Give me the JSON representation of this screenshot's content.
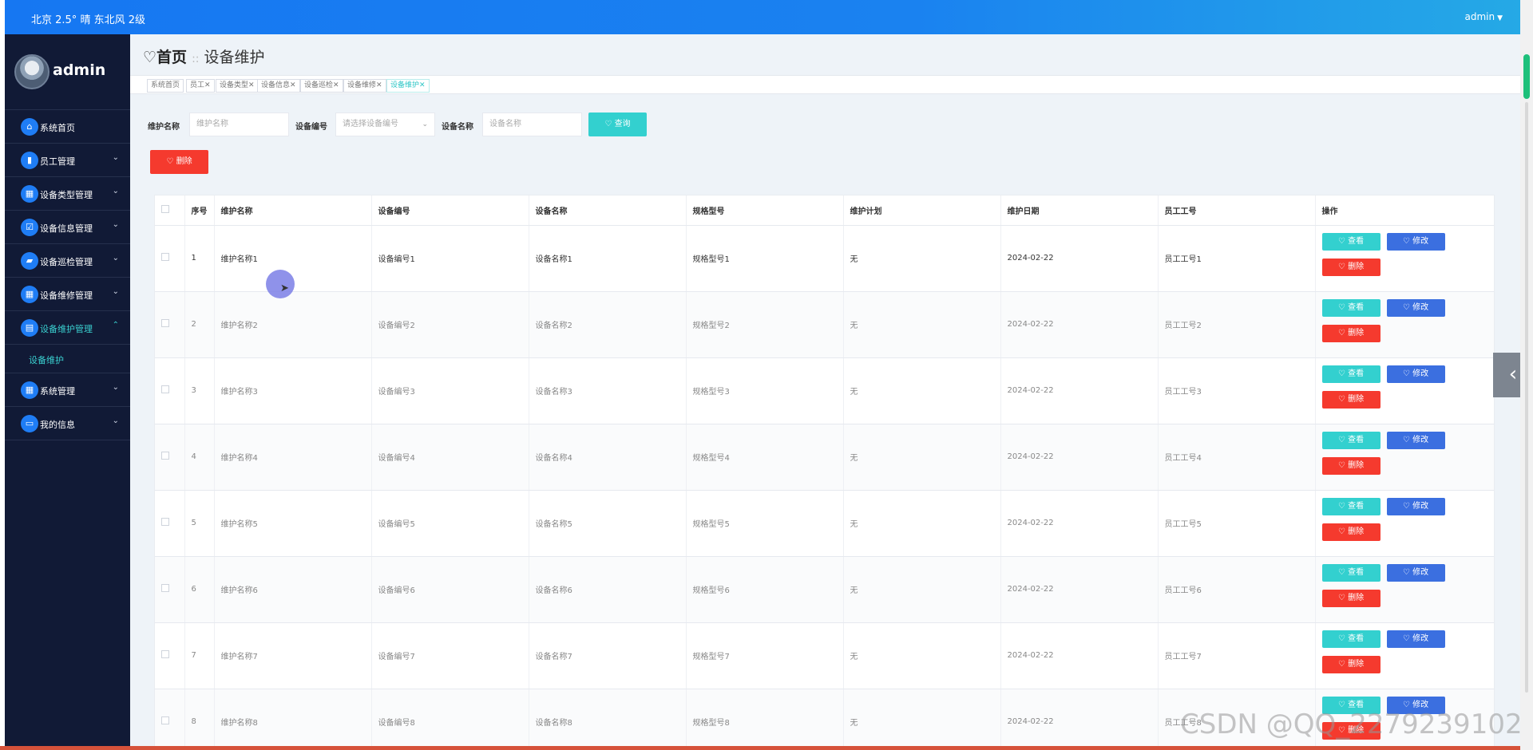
{
  "topbar": {
    "weather": "北京 2.5° 晴 东北风 2级",
    "user": "admin"
  },
  "sidebar": {
    "username": "admin",
    "items": [
      {
        "label": "系统首页",
        "icon": "home-icon",
        "glyph": "⌂",
        "has_children": false
      },
      {
        "label": "员工管理",
        "icon": "bar-chart-icon",
        "glyph": "▮",
        "has_children": true
      },
      {
        "label": "设备类型管理",
        "icon": "grid-icon",
        "glyph": "▦",
        "has_children": true
      },
      {
        "label": "设备信息管理",
        "icon": "check-square-icon",
        "glyph": "☑",
        "has_children": true
      },
      {
        "label": "设备巡检管理",
        "icon": "toolbox-icon",
        "glyph": "▰",
        "has_children": true
      },
      {
        "label": "设备维修管理",
        "icon": "grid-icon",
        "glyph": "▦",
        "has_children": true
      },
      {
        "label": "设备维护管理",
        "icon": "briefcase-icon",
        "glyph": "▤",
        "has_children": true,
        "expanded": true
      },
      {
        "label": "系统管理",
        "icon": "grid-icon",
        "glyph": "▦",
        "has_children": true
      },
      {
        "label": "我的信息",
        "icon": "id-card-icon",
        "glyph": "▭",
        "has_children": true
      }
    ],
    "sub_item": "设备维护",
    "chevron_down": "⌄",
    "chevron_up": "⌃"
  },
  "breadcrumb": {
    "home": "首页",
    "separator": "::",
    "current": "设备维护"
  },
  "tags": [
    "系统首页",
    "员工✕",
    "设备类型✕",
    "设备信息✕",
    "设备巡检✕",
    "设备维修✕",
    "设备维护✕"
  ],
  "filters": {
    "name_label": "维护名称",
    "name_placeholder": "维护名称",
    "code_label": "设备编号",
    "code_placeholder": "请选择设备编号",
    "device_label": "设备名称",
    "device_placeholder": "设备名称",
    "query_label": "♡ 查询"
  },
  "delete_label": "♡ 删除",
  "table": {
    "columns": [
      "",
      "序号",
      "维护名称",
      "设备编号",
      "设备名称",
      "规格型号",
      "维护计划",
      "维护日期",
      "员工工号",
      "操作"
    ],
    "rows": [
      [
        "1",
        "维护名称1",
        "设备编号1",
        "设备名称1",
        "规格型号1",
        "无",
        "2024-02-22",
        "员工工号1"
      ],
      [
        "2",
        "维护名称2",
        "设备编号2",
        "设备名称2",
        "规格型号2",
        "无",
        "2024-02-22",
        "员工工号2"
      ],
      [
        "3",
        "维护名称3",
        "设备编号3",
        "设备名称3",
        "规格型号3",
        "无",
        "2024-02-22",
        "员工工号3"
      ],
      [
        "4",
        "维护名称4",
        "设备编号4",
        "设备名称4",
        "规格型号4",
        "无",
        "2024-02-22",
        "员工工号4"
      ],
      [
        "5",
        "维护名称5",
        "设备编号5",
        "设备名称5",
        "规格型号5",
        "无",
        "2024-02-22",
        "员工工号5"
      ],
      [
        "6",
        "维护名称6",
        "设备编号6",
        "设备名称6",
        "规格型号6",
        "无",
        "2024-02-22",
        "员工工号6"
      ],
      [
        "7",
        "维护名称7",
        "设备编号7",
        "设备名称7",
        "规格型号7",
        "无",
        "2024-02-22",
        "员工工号7"
      ],
      [
        "8",
        "维护名称8",
        "设备编号8",
        "设备名称8",
        "规格型号8",
        "无",
        "2024-02-22",
        "员工工号8"
      ]
    ],
    "actions": {
      "view": "♡ 查看",
      "edit": "♡ 修改",
      "delete": "♡ 删除"
    }
  },
  "handle_glyph": "‹",
  "watermark": "CSDN @QQ_2279239102",
  "colors": {
    "topbar": "#1677f2",
    "sidebar": "#111a36",
    "accent": "#33d0cf",
    "edit": "#3b6fe0",
    "danger": "#f53a2e"
  }
}
